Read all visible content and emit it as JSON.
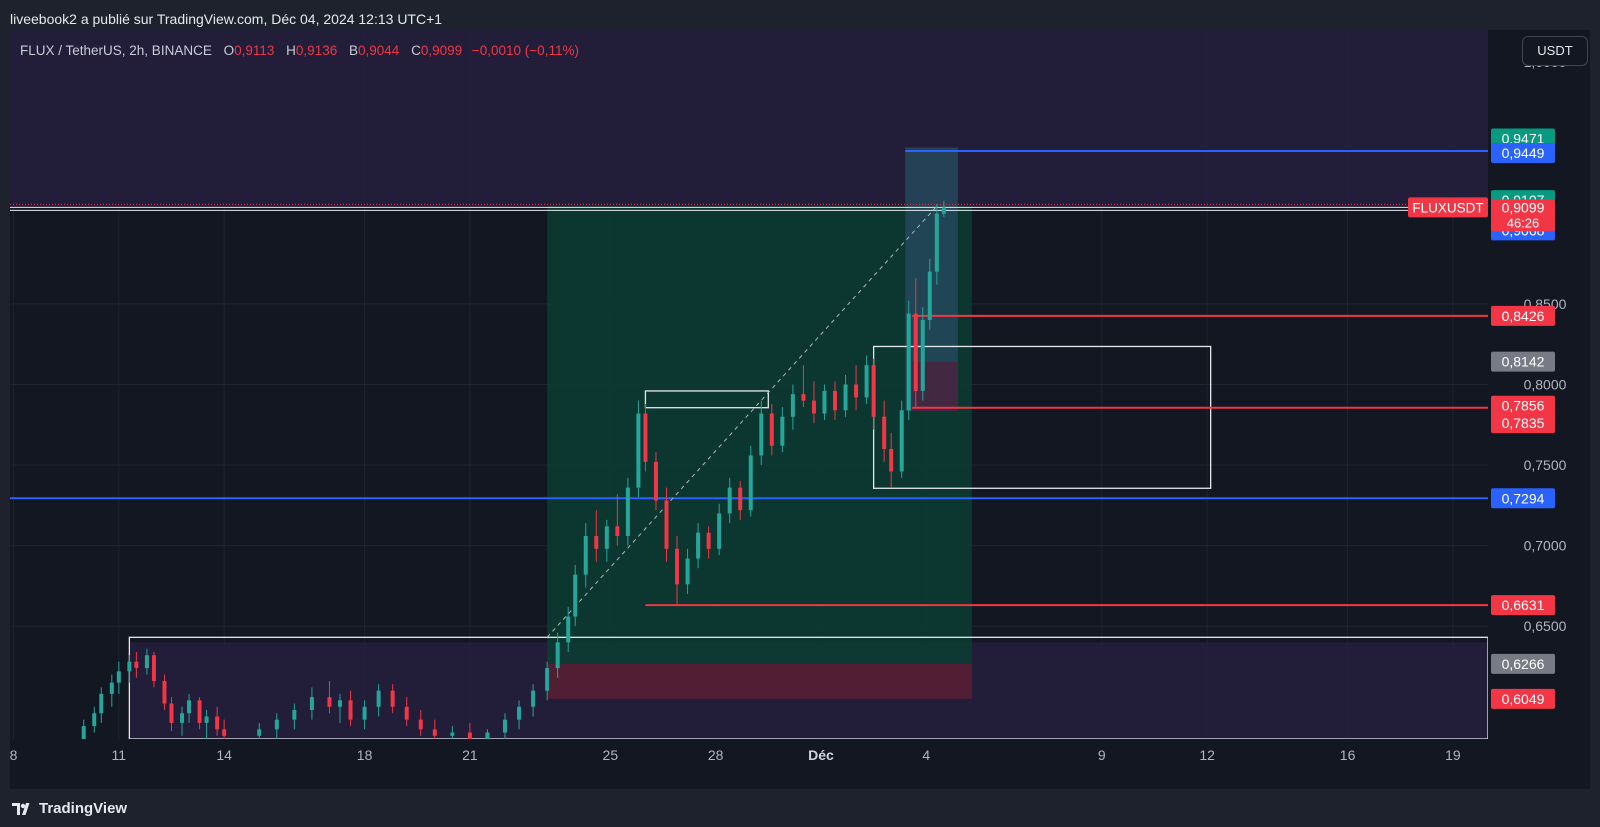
{
  "header": {
    "published_text": "liveebook2 a publié sur TradingView.com, Déc 04, 2024 12:13 UTC+1"
  },
  "legend": {
    "symbol": "FLUX / TetherUS, 2h, BINANCE",
    "o_label": "O",
    "o_value": "0,9113",
    "h_label": "H",
    "h_value": "0,9136",
    "b_label": "B",
    "b_value": "0,9044",
    "c_label": "C",
    "c_value": "0,9099",
    "change": "−0,0010 (−0,11%)"
  },
  "axis": {
    "unit": "USDT"
  },
  "footer": {
    "brand": "TradingView"
  },
  "colors": {
    "up": "#26a69a",
    "down": "#f23645",
    "blue_line": "#2962ff",
    "profit_zone": "#0b3d33",
    "loss_zone": "#5a1e32",
    "purple_zone": "#261f3d"
  },
  "chart_data": {
    "type": "candlestick",
    "symbol": "FLUXUSDT",
    "ylim": [
      0.58,
      1.02
    ],
    "y_ticks": [
      "1,0000",
      "0,8500",
      "0,8000",
      "0,7500",
      "0,7000",
      "0,6500"
    ],
    "x_ticks": [
      "8",
      "11",
      "14",
      "18",
      "21",
      "25",
      "28",
      "Déc",
      "4",
      "9",
      "12",
      "16",
      "19"
    ],
    "x_tick_days": [
      8,
      11,
      14,
      18,
      21,
      25,
      28,
      31,
      34,
      39,
      42,
      46,
      49
    ],
    "x_range_days": [
      7.9,
      50.0
    ],
    "last_price": "0,9099",
    "countdown": "46:26",
    "symbol_label": "FLUXUSDT",
    "price_labels": [
      {
        "value": 0.9471,
        "text": "0,9471",
        "color": "#089981"
      },
      {
        "value": 0.9449,
        "text": "0,9449",
        "color": "#2962ff"
      },
      {
        "value": 0.9107,
        "text": "0,9107",
        "color": "#089981"
      },
      {
        "value": 0.9068,
        "text": "0,9068",
        "color": "#2962ff"
      },
      {
        "value": 0.8426,
        "text": "0,8426",
        "color": "#f23645"
      },
      {
        "value": 0.8142,
        "text": "0,8142",
        "color": "#787b86"
      },
      {
        "value": 0.7856,
        "text": "0,7856",
        "color": "#f23645"
      },
      {
        "value": 0.7835,
        "text": "0,7835",
        "color": "#f23645"
      },
      {
        "value": 0.7294,
        "text": "0,7294",
        "color": "#2962ff"
      },
      {
        "value": 0.6631,
        "text": "0,6631",
        "color": "#f23645"
      },
      {
        "value": 0.6266,
        "text": "0,6266",
        "color": "#787b86"
      },
      {
        "value": 0.6049,
        "text": "0,6049",
        "color": "#f23645"
      }
    ],
    "horizontal_lines": [
      {
        "name": "blue-line-0-9449",
        "value": 0.9449,
        "from_day": 33.4,
        "color": "#2962ff"
      },
      {
        "name": "blue-line-0-7294",
        "value": 0.7294,
        "from_day": 7.9,
        "color": "#2962ff"
      },
      {
        "name": "red-line-0-8426",
        "value": 0.8426,
        "from_day": 33.6,
        "color": "#f23645"
      },
      {
        "name": "red-line-0-7856",
        "value": 0.7856,
        "from_day": 33.6,
        "color": "#f23645"
      },
      {
        "name": "red-line-0-6631",
        "value": 0.6631,
        "from_day": 26.0,
        "color": "#f23645"
      }
    ],
    "zones": [
      {
        "name": "purple-zone-top",
        "y1": 0.91,
        "y2": 1.02,
        "d1": 7.9,
        "d2": 50.0,
        "color": "#261f3d"
      },
      {
        "name": "purple-zone-bottom",
        "y1": 0.58,
        "y2": 0.64,
        "d1": 11.3,
        "d2": 50.0,
        "color": "#261f3d"
      },
      {
        "name": "long-profit-zone",
        "y1": 0.6266,
        "y2": 0.9107,
        "d1": 23.2,
        "d2": 35.3,
        "color": "#0b3d33"
      },
      {
        "name": "long-loss-zone",
        "y1": 0.6049,
        "y2": 0.6266,
        "d1": 23.2,
        "d2": 35.3,
        "color": "#5a1e32"
      },
      {
        "name": "short-profit-zone",
        "y1": 0.7835,
        "y2": 0.9471,
        "d1": 33.4,
        "d2": 34.9,
        "color": "#25485b"
      },
      {
        "name": "short-loss-zone",
        "y1": 0.7835,
        "y2": 0.8142,
        "d1": 33.6,
        "d2": 34.9,
        "color": "#4a2340"
      }
    ],
    "rectangles": [
      {
        "name": "consolidation-box-1",
        "y1": 0.7356,
        "y2": 0.8236,
        "d1": 32.5,
        "d2": 42.1
      },
      {
        "name": "consolidation-box-2",
        "y1": 0.7856,
        "y2": 0.796,
        "d1": 26.0,
        "d2": 29.5
      },
      {
        "name": "consolidation-box-3",
        "y1": 0.58,
        "y2": 0.6431,
        "d1": 11.3,
        "d2": 50.0
      }
    ],
    "trendline": {
      "from_day": 23.2,
      "from_value": 0.6431,
      "to_day": 34.3,
      "to_value": 0.9107
    },
    "candles": [
      {
        "d": 10.0,
        "o": 0.58,
        "h": 0.592,
        "l": 0.575,
        "c": 0.588
      },
      {
        "d": 10.3,
        "o": 0.588,
        "h": 0.6,
        "l": 0.584,
        "c": 0.596
      },
      {
        "d": 10.5,
        "o": 0.596,
        "h": 0.612,
        "l": 0.59,
        "c": 0.608
      },
      {
        "d": 10.8,
        "o": 0.608,
        "h": 0.62,
        "l": 0.6,
        "c": 0.615
      },
      {
        "d": 11.0,
        "o": 0.615,
        "h": 0.628,
        "l": 0.608,
        "c": 0.622
      },
      {
        "d": 11.3,
        "o": 0.622,
        "h": 0.632,
        "l": 0.615,
        "c": 0.628
      },
      {
        "d": 11.5,
        "o": 0.628,
        "h": 0.634,
        "l": 0.618,
        "c": 0.624
      },
      {
        "d": 11.8,
        "o": 0.624,
        "h": 0.636,
        "l": 0.62,
        "c": 0.632
      },
      {
        "d": 12.0,
        "o": 0.632,
        "h": 0.634,
        "l": 0.612,
        "c": 0.616
      },
      {
        "d": 12.3,
        "o": 0.616,
        "h": 0.62,
        "l": 0.598,
        "c": 0.602
      },
      {
        "d": 12.5,
        "o": 0.602,
        "h": 0.606,
        "l": 0.585,
        "c": 0.59
      },
      {
        "d": 12.8,
        "o": 0.59,
        "h": 0.6,
        "l": 0.582,
        "c": 0.596
      },
      {
        "d": 13.0,
        "o": 0.596,
        "h": 0.608,
        "l": 0.59,
        "c": 0.604
      },
      {
        "d": 13.3,
        "o": 0.604,
        "h": 0.606,
        "l": 0.586,
        "c": 0.59
      },
      {
        "d": 13.5,
        "o": 0.59,
        "h": 0.598,
        "l": 0.58,
        "c": 0.594
      },
      {
        "d": 13.8,
        "o": 0.594,
        "h": 0.6,
        "l": 0.582,
        "c": 0.586
      },
      {
        "d": 14.0,
        "o": 0.586,
        "h": 0.592,
        "l": 0.578,
        "c": 0.582
      },
      {
        "d": 15.0,
        "o": 0.582,
        "h": 0.59,
        "l": 0.576,
        "c": 0.586
      },
      {
        "d": 15.5,
        "o": 0.586,
        "h": 0.596,
        "l": 0.58,
        "c": 0.592
      },
      {
        "d": 16.0,
        "o": 0.592,
        "h": 0.602,
        "l": 0.586,
        "c": 0.598
      },
      {
        "d": 16.5,
        "o": 0.598,
        "h": 0.612,
        "l": 0.592,
        "c": 0.606
      },
      {
        "d": 17.0,
        "o": 0.606,
        "h": 0.616,
        "l": 0.596,
        "c": 0.6
      },
      {
        "d": 17.3,
        "o": 0.6,
        "h": 0.608,
        "l": 0.59,
        "c": 0.604
      },
      {
        "d": 17.6,
        "o": 0.604,
        "h": 0.61,
        "l": 0.588,
        "c": 0.592
      },
      {
        "d": 18.0,
        "o": 0.592,
        "h": 0.604,
        "l": 0.586,
        "c": 0.6
      },
      {
        "d": 18.4,
        "o": 0.6,
        "h": 0.614,
        "l": 0.594,
        "c": 0.61
      },
      {
        "d": 18.8,
        "o": 0.61,
        "h": 0.614,
        "l": 0.596,
        "c": 0.6
      },
      {
        "d": 19.2,
        "o": 0.6,
        "h": 0.606,
        "l": 0.588,
        "c": 0.592
      },
      {
        "d": 19.6,
        "o": 0.592,
        "h": 0.598,
        "l": 0.582,
        "c": 0.586
      },
      {
        "d": 20.0,
        "o": 0.586,
        "h": 0.592,
        "l": 0.578,
        "c": 0.582
      },
      {
        "d": 20.5,
        "o": 0.582,
        "h": 0.588,
        "l": 0.576,
        "c": 0.584
      },
      {
        "d": 21.0,
        "o": 0.584,
        "h": 0.59,
        "l": 0.578,
        "c": 0.58
      },
      {
        "d": 21.5,
        "o": 0.58,
        "h": 0.586,
        "l": 0.575,
        "c": 0.584
      },
      {
        "d": 22.0,
        "o": 0.584,
        "h": 0.596,
        "l": 0.58,
        "c": 0.592
      },
      {
        "d": 22.4,
        "o": 0.592,
        "h": 0.604,
        "l": 0.586,
        "c": 0.6
      },
      {
        "d": 22.8,
        "o": 0.6,
        "h": 0.614,
        "l": 0.594,
        "c": 0.61
      },
      {
        "d": 23.2,
        "o": 0.61,
        "h": 0.628,
        "l": 0.604,
        "c": 0.624
      },
      {
        "d": 23.5,
        "o": 0.624,
        "h": 0.646,
        "l": 0.618,
        "c": 0.64
      },
      {
        "d": 23.8,
        "o": 0.64,
        "h": 0.662,
        "l": 0.634,
        "c": 0.656
      },
      {
        "d": 24.0,
        "o": 0.656,
        "h": 0.688,
        "l": 0.65,
        "c": 0.682
      },
      {
        "d": 24.3,
        "o": 0.682,
        "h": 0.714,
        "l": 0.674,
        "c": 0.706
      },
      {
        "d": 24.6,
        "o": 0.706,
        "h": 0.722,
        "l": 0.69,
        "c": 0.698
      },
      {
        "d": 24.9,
        "o": 0.698,
        "h": 0.716,
        "l": 0.69,
        "c": 0.712
      },
      {
        "d": 25.2,
        "o": 0.712,
        "h": 0.732,
        "l": 0.7,
        "c": 0.706
      },
      {
        "d": 25.5,
        "o": 0.706,
        "h": 0.742,
        "l": 0.7,
        "c": 0.736
      },
      {
        "d": 25.8,
        "o": 0.736,
        "h": 0.79,
        "l": 0.73,
        "c": 0.782
      },
      {
        "d": 26.0,
        "o": 0.782,
        "h": 0.788,
        "l": 0.746,
        "c": 0.752
      },
      {
        "d": 26.3,
        "o": 0.752,
        "h": 0.758,
        "l": 0.722,
        "c": 0.728
      },
      {
        "d": 26.6,
        "o": 0.728,
        "h": 0.736,
        "l": 0.69,
        "c": 0.698
      },
      {
        "d": 26.9,
        "o": 0.698,
        "h": 0.706,
        "l": 0.663,
        "c": 0.676
      },
      {
        "d": 27.2,
        "o": 0.676,
        "h": 0.698,
        "l": 0.67,
        "c": 0.692
      },
      {
        "d": 27.5,
        "o": 0.692,
        "h": 0.714,
        "l": 0.686,
        "c": 0.708
      },
      {
        "d": 27.8,
        "o": 0.708,
        "h": 0.712,
        "l": 0.692,
        "c": 0.698
      },
      {
        "d": 28.1,
        "o": 0.698,
        "h": 0.726,
        "l": 0.694,
        "c": 0.72
      },
      {
        "d": 28.4,
        "o": 0.72,
        "h": 0.742,
        "l": 0.714,
        "c": 0.736
      },
      {
        "d": 28.7,
        "o": 0.736,
        "h": 0.74,
        "l": 0.716,
        "c": 0.722
      },
      {
        "d": 29.0,
        "o": 0.722,
        "h": 0.762,
        "l": 0.718,
        "c": 0.756
      },
      {
        "d": 29.3,
        "o": 0.756,
        "h": 0.79,
        "l": 0.75,
        "c": 0.782
      },
      {
        "d": 29.6,
        "o": 0.782,
        "h": 0.788,
        "l": 0.756,
        "c": 0.762
      },
      {
        "d": 29.9,
        "o": 0.762,
        "h": 0.786,
        "l": 0.758,
        "c": 0.78
      },
      {
        "d": 30.2,
        "o": 0.78,
        "h": 0.8,
        "l": 0.772,
        "c": 0.794
      },
      {
        "d": 30.5,
        "o": 0.794,
        "h": 0.812,
        "l": 0.786,
        "c": 0.79
      },
      {
        "d": 30.8,
        "o": 0.79,
        "h": 0.802,
        "l": 0.776,
        "c": 0.782
      },
      {
        "d": 31.1,
        "o": 0.782,
        "h": 0.8,
        "l": 0.778,
        "c": 0.796
      },
      {
        "d": 31.4,
        "o": 0.796,
        "h": 0.802,
        "l": 0.778,
        "c": 0.784
      },
      {
        "d": 31.7,
        "o": 0.784,
        "h": 0.806,
        "l": 0.78,
        "c": 0.8
      },
      {
        "d": 32.0,
        "o": 0.8,
        "h": 0.812,
        "l": 0.784,
        "c": 0.792
      },
      {
        "d": 32.3,
        "o": 0.792,
        "h": 0.818,
        "l": 0.788,
        "c": 0.812
      },
      {
        "d": 32.5,
        "o": 0.812,
        "h": 0.816,
        "l": 0.772,
        "c": 0.78
      },
      {
        "d": 32.8,
        "o": 0.78,
        "h": 0.79,
        "l": 0.752,
        "c": 0.76
      },
      {
        "d": 33.0,
        "o": 0.76,
        "h": 0.77,
        "l": 0.736,
        "c": 0.746
      },
      {
        "d": 33.3,
        "o": 0.746,
        "h": 0.79,
        "l": 0.742,
        "c": 0.784
      },
      {
        "d": 33.5,
        "o": 0.784,
        "h": 0.852,
        "l": 0.778,
        "c": 0.844
      },
      {
        "d": 33.7,
        "o": 0.844,
        "h": 0.866,
        "l": 0.786,
        "c": 0.796
      },
      {
        "d": 33.9,
        "o": 0.796,
        "h": 0.848,
        "l": 0.79,
        "c": 0.84
      },
      {
        "d": 34.1,
        "o": 0.84,
        "h": 0.878,
        "l": 0.834,
        "c": 0.87
      },
      {
        "d": 34.3,
        "o": 0.87,
        "h": 0.912,
        "l": 0.862,
        "c": 0.906
      },
      {
        "d": 34.5,
        "o": 0.906,
        "h": 0.914,
        "l": 0.904,
        "c": 0.9099
      }
    ]
  }
}
